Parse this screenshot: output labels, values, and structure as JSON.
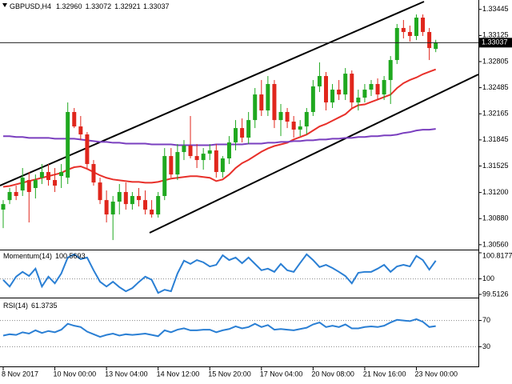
{
  "chart_data": {
    "type": "candlestick",
    "title": "GBPUSD,H4",
    "ohlc_labels": [
      "1.32960",
      "1.33072",
      "1.32921",
      "1.33037"
    ],
    "categories": [
      "8 Nov 2017",
      null,
      null,
      null,
      null,
      null,
      null,
      null,
      "10 Nov 00:00",
      null,
      null,
      null,
      null,
      null,
      null,
      null,
      "13 Nov 04:00",
      null,
      null,
      null,
      null,
      null,
      null,
      null,
      "14 Nov 12:00",
      null,
      null,
      null,
      null,
      null,
      null,
      null,
      "15 Nov 20:00",
      null,
      null,
      null,
      null,
      null,
      null,
      null,
      "17 Nov 04:00",
      null,
      null,
      null,
      null,
      null,
      null,
      null,
      "20 Nov 08:00",
      null,
      null,
      null,
      null,
      null,
      null,
      null,
      "21 Nov 16:00",
      null,
      null,
      null,
      null,
      null,
      null,
      null,
      "23 Nov 00:00",
      null,
      null,
      null
    ],
    "open": [
      1.3099,
      1.31107,
      1.31206,
      1.31225,
      1.31353,
      1.31255,
      1.31382,
      1.31451,
      1.31353,
      1.31402,
      1.31382,
      1.32187,
      1.3201,
      1.31912,
      1.31549,
      1.31323,
      1.31107,
      1.30931,
      1.31088,
      1.31206,
      1.31058,
      1.31157,
      1.31107,
      1.3099,
      1.30931,
      1.31157,
      1.31647,
      1.31421,
      1.31696,
      1.31775,
      1.31647,
      1.31598,
      1.31676,
      1.31716,
      1.31451,
      1.31618,
      1.31814,
      1.3199,
      1.31873,
      1.32088,
      1.32402,
      1.32206,
      1.3253,
      1.32088,
      1.32187,
      1.32069,
      1.31971,
      1.3201,
      1.32187,
      1.32501,
      1.32628,
      1.32304,
      1.32461,
      1.32402,
      1.32657,
      1.32304,
      1.32363,
      1.32461,
      1.3253,
      1.32402,
      1.32579,
      1.32824,
      1.33217,
      1.33168,
      1.33119,
      1.33344,
      1.33168,
      1.3296
    ],
    "high": [
      1.31107,
      1.31255,
      1.31284,
      1.315,
      1.31451,
      1.31421,
      1.31549,
      1.31549,
      1.315,
      1.31549,
      1.32304,
      1.32236,
      1.32138,
      1.31941,
      1.31598,
      1.31382,
      1.31225,
      1.31157,
      1.31304,
      1.31323,
      1.31206,
      1.31255,
      1.31225,
      1.31107,
      1.31206,
      1.31745,
      1.31745,
      1.31794,
      1.31843,
      1.32138,
      1.31794,
      1.31745,
      1.31794,
      1.31794,
      1.31647,
      1.31892,
      1.32088,
      1.32108,
      1.32187,
      1.32481,
      1.32579,
      1.32628,
      1.32579,
      1.32285,
      1.32236,
      1.32138,
      1.32088,
      1.32236,
      1.32579,
      1.32795,
      1.32677,
      1.3253,
      1.32579,
      1.32726,
      1.32697,
      1.32461,
      1.3253,
      1.32579,
      1.32599,
      1.32628,
      1.32873,
      1.33266,
      1.33315,
      1.33246,
      1.33383,
      1.33383,
      1.33217,
      1.33072
    ],
    "low": [
      1.30764,
      1.31058,
      1.31107,
      1.31157,
      1.30833,
      1.31127,
      1.31304,
      1.31284,
      1.31206,
      1.31255,
      1.31304,
      1.3199,
      1.31843,
      1.315,
      1.31284,
      1.31058,
      1.30833,
      1.30617,
      1.30931,
      1.3099,
      1.3099,
      1.31029,
      1.30931,
      1.30892,
      1.30892,
      1.31107,
      1.31382,
      1.31353,
      1.31598,
      1.31618,
      1.315,
      1.3148,
      1.31598,
      1.31382,
      1.31382,
      1.31549,
      1.31716,
      1.31814,
      1.31794,
      1.3199,
      1.32138,
      1.32138,
      1.3199,
      1.31892,
      1.3199,
      1.31873,
      1.31892,
      1.31912,
      1.32138,
      1.32432,
      1.32206,
      1.32236,
      1.32334,
      1.32334,
      1.32236,
      1.32206,
      1.32304,
      1.32383,
      1.32334,
      1.32334,
      1.32285,
      1.32775,
      1.33089,
      1.3305,
      1.33069,
      1.33119,
      1.32824,
      1.32921
    ],
    "close": [
      1.31058,
      1.31206,
      1.31157,
      1.31382,
      1.31206,
      1.31353,
      1.31451,
      1.31353,
      1.31284,
      1.31451,
      1.32187,
      1.3201,
      1.31912,
      1.31549,
      1.31323,
      1.31107,
      1.30931,
      1.31088,
      1.31206,
      1.31058,
      1.31157,
      1.31107,
      1.3099,
      1.30931,
      1.31157,
      1.31647,
      1.31421,
      1.31696,
      1.31775,
      1.31647,
      1.31598,
      1.31676,
      1.31716,
      1.31451,
      1.31618,
      1.31814,
      1.3199,
      1.31873,
      1.32088,
      1.32402,
      1.32206,
      1.3253,
      1.32088,
      1.32187,
      1.32069,
      1.31971,
      1.3201,
      1.32187,
      1.32501,
      1.32628,
      1.32304,
      1.32461,
      1.32402,
      1.32657,
      1.32304,
      1.32363,
      1.32461,
      1.3253,
      1.32402,
      1.32579,
      1.32824,
      1.33217,
      1.33168,
      1.33119,
      1.33344,
      1.33168,
      1.32971,
      1.33037
    ],
    "up_color": "#1fa81f",
    "down_color": "#e0261c",
    "overlays": [
      {
        "color": "#e8302a",
        "values": [
          1.3127,
          1.3128,
          1.313,
          1.3132,
          1.3134,
          1.3136,
          1.3138,
          1.314,
          1.3142,
          1.3144,
          1.3148,
          1.3151,
          1.3152,
          1.3149,
          1.3145,
          1.3141,
          1.3138,
          1.3136,
          1.3135,
          1.3134,
          1.3133,
          1.3133,
          1.3132,
          1.3132,
          1.3133,
          1.3135,
          1.3137,
          1.3138,
          1.3139,
          1.314,
          1.314,
          1.3139,
          1.3138,
          1.3134,
          1.3136,
          1.3142,
          1.315,
          1.3156,
          1.316,
          1.3165,
          1.317,
          1.3174,
          1.3177,
          1.3179,
          1.3181,
          1.3185,
          1.3188,
          1.3191,
          1.3196,
          1.3201,
          1.3204,
          1.3208,
          1.3212,
          1.3216,
          1.3223,
          1.3227,
          1.3228,
          1.3231,
          1.3234,
          1.3237,
          1.324,
          1.3248,
          1.3254,
          1.3258,
          1.3261,
          1.3265,
          1.3268,
          1.3271
        ]
      },
      {
        "color": "#7a3fbf",
        "values": [
          1.3189,
          1.3189,
          1.3188,
          1.3188,
          1.3187,
          1.3187,
          1.3187,
          1.3187,
          1.3186,
          1.3186,
          1.3186,
          1.3186,
          1.3185,
          1.3184,
          1.3183,
          1.3182,
          1.3182,
          1.3181,
          1.3181,
          1.318,
          1.318,
          1.318,
          1.318,
          1.3179,
          1.3179,
          1.3179,
          1.3179,
          1.3178,
          1.3178,
          1.3178,
          1.3178,
          1.3178,
          1.3178,
          1.3179,
          1.3179,
          1.3179,
          1.3179,
          1.3179,
          1.318,
          1.318,
          1.318,
          1.3181,
          1.3181,
          1.3182,
          1.3182,
          1.3183,
          1.3183,
          1.3184,
          1.3184,
          1.3185,
          1.3185,
          1.3186,
          1.3186,
          1.3187,
          1.3187,
          1.3188,
          1.3188,
          1.3189,
          1.3189,
          1.319,
          1.319,
          1.3191,
          1.3193,
          1.3194,
          1.3196,
          1.3197,
          1.3197,
          1.3198
        ]
      }
    ],
    "ylim": [
      1.305,
      1.3356
    ],
    "yticks": [
      1.33445,
      1.33125,
      1.32805,
      1.32485,
      1.32165,
      1.31845,
      1.31525,
      {
        "value": 1.312,
        "label": "1.31200"
      },
      {
        "value": 1.3088,
        "label": "1.30880"
      },
      {
        "value": 1.3056,
        "label": "1.30560"
      }
    ],
    "indicators": [
      {
        "type": "line",
        "title": "Momentum(14)",
        "color": "#2a7fd4",
        "values": [
          99.97,
          99.76,
          100.07,
          100.22,
          100.09,
          100.32,
          99.76,
          100.07,
          99.86,
          100.17,
          100.67,
          100.77,
          100.62,
          100.67,
          100.27,
          99.91,
          99.76,
          99.91,
          99.74,
          99.61,
          99.71,
          99.9,
          100.07,
          99.97,
          99.56,
          99.66,
          99.61,
          100.17,
          100.57,
          100.47,
          100.59,
          100.52,
          100.39,
          100.44,
          100.74,
          100.59,
          100.67,
          100.49,
          100.67,
          100.47,
          100.27,
          100.32,
          100.22,
          100.47,
          100.27,
          100.22,
          100.5,
          100.77,
          100.59,
          100.37,
          100.44,
          100.34,
          100.22,
          100.09,
          99.86,
          100.19,
          100.22,
          100.22,
          100.32,
          100.44,
          100.22,
          100.39,
          100.44,
          100.39,
          100.72,
          100.59,
          100.29,
          100.5693
        ],
        "ylim": [
          99.5126,
          100.8177
        ],
        "yticks": [
          100.8177,
          100,
          99.5126
        ],
        "levels": [
          100
        ]
      },
      {
        "type": "line",
        "title": "RSI(14)",
        "color": "#2a7fd4",
        "values": [
          47,
          49,
          48,
          52,
          50,
          55,
          51,
          54,
          52,
          56,
          65,
          62,
          60,
          53,
          49,
          45,
          48,
          50,
          47,
          49,
          48,
          49,
          50,
          48,
          46,
          55,
          52,
          56,
          58,
          55,
          55,
          56,
          56,
          52,
          55,
          57,
          61,
          58,
          60,
          65,
          60,
          63,
          56,
          57,
          56,
          55,
          57,
          59,
          64,
          67,
          60,
          62,
          60,
          64,
          58,
          58,
          60,
          61,
          60,
          62,
          67,
          71,
          70,
          69,
          72,
          68,
          60,
          61.3735
        ],
        "ylim": [
          0,
          100
        ],
        "yticks": [
          70,
          30
        ],
        "levels": [
          70,
          30
        ]
      }
    ]
  }
}
